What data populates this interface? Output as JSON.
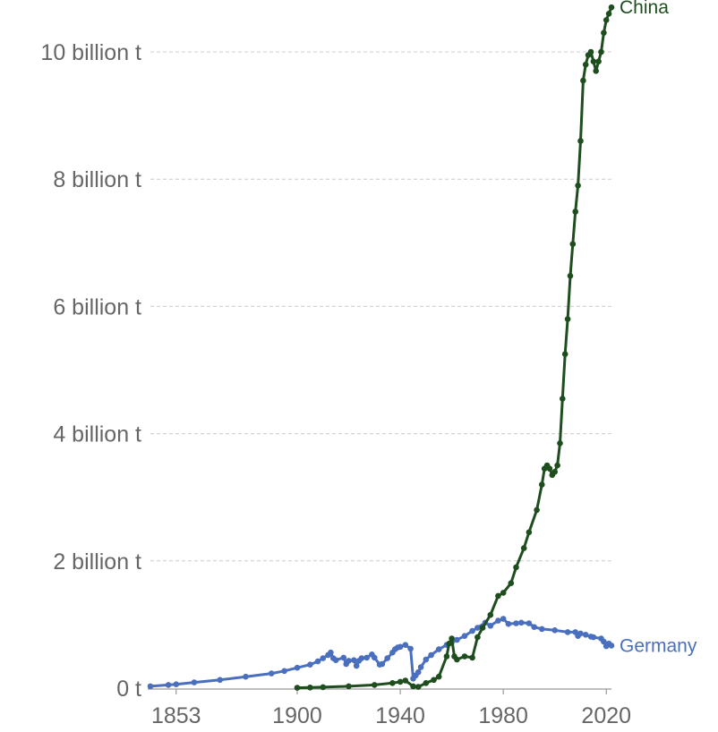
{
  "chart_data": {
    "type": "line",
    "title": "",
    "xlabel": "",
    "ylabel": "",
    "xlim": [
      1843,
      2022
    ],
    "ylim": [
      0,
      10500000000
    ],
    "x_ticks": [
      {
        "value": 1853,
        "label": "1853"
      },
      {
        "value": 1900,
        "label": "1900"
      },
      {
        "value": 1940,
        "label": "1940"
      },
      {
        "value": 1980,
        "label": "1980"
      },
      {
        "value": 2020,
        "label": "2020"
      }
    ],
    "y_ticks": [
      {
        "value": 0,
        "label": "0 t"
      },
      {
        "value": 2000000000,
        "label": "2 billion t"
      },
      {
        "value": 4000000000,
        "label": "4 billion t"
      },
      {
        "value": 6000000000,
        "label": "6 billion t"
      },
      {
        "value": 8000000000,
        "label": "8 billion t"
      },
      {
        "value": 10000000000,
        "label": "10 billion t"
      }
    ],
    "grid": true,
    "series": [
      {
        "name": "Germany",
        "color": "#4a6fbf",
        "x": [
          1843,
          1850,
          1853,
          1860,
          1870,
          1880,
          1890,
          1895,
          1900,
          1905,
          1908,
          1910,
          1912,
          1913,
          1914,
          1915,
          1918,
          1919,
          1920,
          1922,
          1923,
          1924,
          1925,
          1927,
          1929,
          1930,
          1932,
          1933,
          1935,
          1937,
          1938,
          1939,
          1940,
          1942,
          1944,
          1945,
          1946,
          1947,
          1948,
          1950,
          1952,
          1955,
          1958,
          1960,
          1962,
          1965,
          1968,
          1970,
          1973,
          1975,
          1978,
          1980,
          1982,
          1985,
          1987,
          1990,
          1992,
          1995,
          2000,
          2005,
          2008,
          2009,
          2010,
          2012,
          2014,
          2015,
          2018,
          2019,
          2020,
          2021,
          2022
        ],
        "y": [
          30000000,
          50000000,
          60000000,
          90000000,
          130000000,
          180000000,
          230000000,
          270000000,
          320000000,
          370000000,
          420000000,
          470000000,
          520000000,
          560000000,
          470000000,
          440000000,
          480000000,
          380000000,
          430000000,
          440000000,
          350000000,
          430000000,
          470000000,
          480000000,
          530000000,
          480000000,
          370000000,
          380000000,
          470000000,
          560000000,
          610000000,
          640000000,
          650000000,
          680000000,
          620000000,
          150000000,
          200000000,
          250000000,
          330000000,
          450000000,
          520000000,
          610000000,
          680000000,
          720000000,
          760000000,
          820000000,
          900000000,
          950000000,
          1030000000,
          980000000,
          1060000000,
          1090000000,
          1010000000,
          1020000000,
          1030000000,
          1020000000,
          960000000,
          930000000,
          910000000,
          880000000,
          880000000,
          820000000,
          860000000,
          840000000,
          810000000,
          800000000,
          780000000,
          730000000,
          660000000,
          700000000,
          670000000
        ]
      },
      {
        "name": "China",
        "color": "#1e4d1e",
        "x": [
          1900,
          1905,
          1910,
          1920,
          1930,
          1937,
          1940,
          1942,
          1945,
          1947,
          1950,
          1953,
          1955,
          1958,
          1959,
          1960,
          1961,
          1962,
          1965,
          1968,
          1970,
          1972,
          1975,
          1978,
          1980,
          1983,
          1985,
          1988,
          1990,
          1993,
          1995,
          1996,
          1997,
          1998,
          1999,
          2000,
          2001,
          2002,
          2003,
          2004,
          2005,
          2006,
          2007,
          2008,
          2009,
          2010,
          2011,
          2012,
          2013,
          2014,
          2015,
          2016,
          2017,
          2018,
          2019,
          2020,
          2021,
          2022
        ],
        "y": [
          5000000,
          10000000,
          15000000,
          30000000,
          50000000,
          80000000,
          100000000,
          120000000,
          30000000,
          20000000,
          80000000,
          130000000,
          180000000,
          500000000,
          700000000,
          780000000,
          500000000,
          450000000,
          500000000,
          480000000,
          800000000,
          950000000,
          1150000000,
          1450000000,
          1500000000,
          1650000000,
          1900000000,
          2200000000,
          2450000000,
          2800000000,
          3200000000,
          3450000000,
          3500000000,
          3450000000,
          3350000000,
          3400000000,
          3500000000,
          3850000000,
          4550000000,
          5250000000,
          5800000000,
          6480000000,
          6980000000,
          7490000000,
          7900000000,
          8600000000,
          9550000000,
          9800000000,
          9950000000,
          10000000000,
          9850000000,
          9700000000,
          9850000000,
          10000000000,
          10300000000,
          10500000000,
          10600000000,
          10700000000
        ]
      }
    ]
  }
}
